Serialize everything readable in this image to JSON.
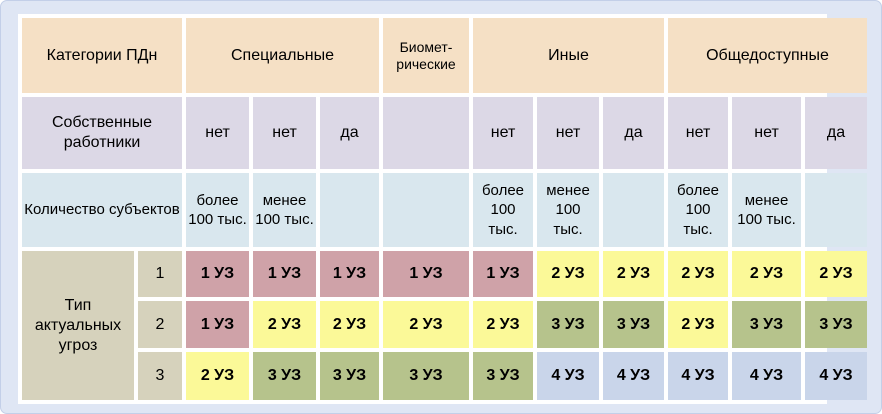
{
  "colors": {
    "background": "#dfe6f4",
    "header": "#f5e0c5",
    "employees_row": "#dcd8e6",
    "subjects_row": "#d9e7ee",
    "threat_label": "#d6d2bc",
    "uz1": "#cfa2a8",
    "uz2": "#fbf998",
    "uz3": "#b6c38c",
    "uz4": "#c9d5ea"
  },
  "chart_data": {
    "type": "table",
    "corner_label": "Категории ПДн",
    "category_groups": [
      {
        "label": "Специальные",
        "columns": 3
      },
      {
        "label": "Биомет-\nрические",
        "columns": 1
      },
      {
        "label": "Иные",
        "columns": 3
      },
      {
        "label": "Общедоступные",
        "columns": 3
      }
    ],
    "employees": {
      "label": "Собственные работники",
      "values": [
        "нет",
        "нет",
        "да",
        "",
        "нет",
        "нет",
        "да",
        "нет",
        "нет",
        "да"
      ]
    },
    "subjects": {
      "label": "Количество субъектов",
      "values": [
        "более 100 тыс.",
        "менее 100 тыс.",
        "",
        "",
        "более 100 тыс.",
        "менее 100 тыс.",
        "",
        "более 100 тыс.",
        "менее 100 тыс.",
        ""
      ]
    },
    "threats": {
      "label": "Тип актуальных угроз",
      "levels": [
        "1",
        "2",
        "3"
      ],
      "matrix": [
        [
          "1 УЗ",
          "1 УЗ",
          "1 УЗ",
          "1 УЗ",
          "1 УЗ",
          "2 УЗ",
          "2 УЗ",
          "2 УЗ",
          "2 УЗ",
          "2 УЗ"
        ],
        [
          "1 УЗ",
          "2 УЗ",
          "2 УЗ",
          "2 УЗ",
          "2 УЗ",
          "3 УЗ",
          "3 УЗ",
          "2 УЗ",
          "3 УЗ",
          "3 УЗ"
        ],
        [
          "2 УЗ",
          "3 УЗ",
          "3 УЗ",
          "3 УЗ",
          "3 УЗ",
          "4 УЗ",
          "4 УЗ",
          "4 УЗ",
          "4 УЗ",
          "4 УЗ"
        ]
      ]
    }
  }
}
